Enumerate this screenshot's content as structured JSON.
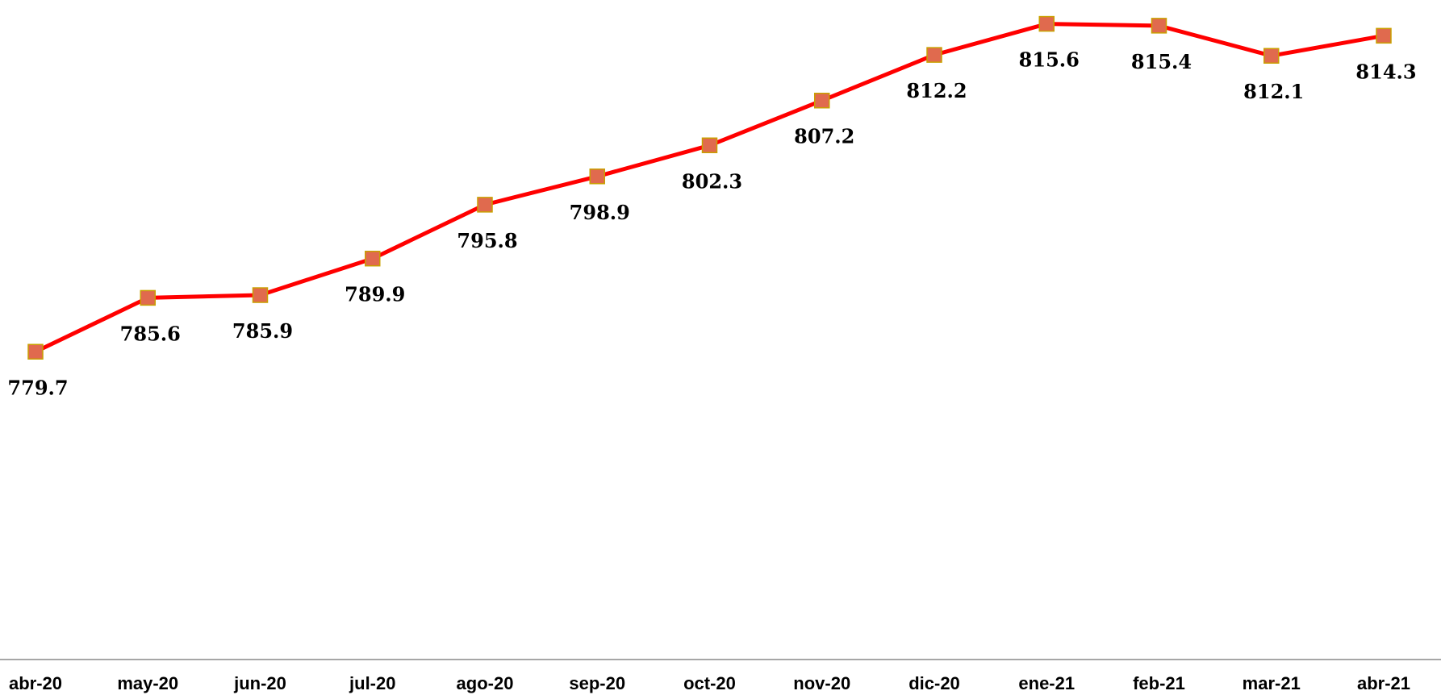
{
  "chart_data": {
    "type": "line",
    "categories": [
      "abr-20",
      "may-20",
      "jun-20",
      "jul-20",
      "ago-20",
      "sep-20",
      "oct-20",
      "nov-20",
      "dic-20",
      "ene-21",
      "feb-21",
      "mar-21",
      "abr-21"
    ],
    "series": [
      {
        "values": [
          779.7,
          785.6,
          785.9,
          789.9,
          795.8,
          798.9,
          802.3,
          807.2,
          812.2,
          815.6,
          815.4,
          812.1,
          814.3
        ],
        "labels": [
          "779.7",
          "785.6",
          "785.9",
          "789.9",
          "795.8",
          "798.9",
          "802.3",
          "807.2",
          "812.2",
          "815.6",
          "815.4",
          "812.1",
          "814.3"
        ],
        "line_color": "#ff0000",
        "marker": "square",
        "marker_fill": "#e06a4e",
        "marker_border": "#c9a000"
      }
    ],
    "ylim": [
      746,
      816.8
    ],
    "grid": false,
    "legend": "none",
    "axis_color": "#888888"
  }
}
